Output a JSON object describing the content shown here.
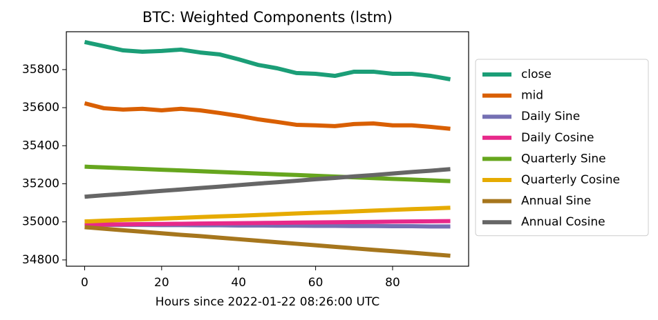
{
  "chart_data": {
    "type": "line",
    "title": "BTC: Weighted Components (lstm)",
    "x_label": "Hours since 2022-01-22 08:26:00 UTC",
    "x": [
      0,
      5,
      10,
      15,
      20,
      25,
      30,
      35,
      40,
      45,
      50,
      55,
      60,
      65,
      70,
      75,
      80,
      85,
      90,
      95
    ],
    "xlim": [
      -4.75,
      99.75
    ],
    "xticks": [
      0,
      20,
      40,
      60,
      80
    ],
    "ylim": [
      34767,
      35999
    ],
    "yticks": [
      34800,
      35000,
      35200,
      35400,
      35600,
      35800
    ],
    "legend": "outside right",
    "series": [
      {
        "name": "close",
        "color": "#1b9e77",
        "values": [
          35945,
          35923,
          35901,
          35894,
          35898,
          35905,
          35890,
          35880,
          35854,
          35825,
          35807,
          35782,
          35778,
          35767,
          35789,
          35789,
          35778,
          35778,
          35767,
          35749
        ]
      },
      {
        "name": "mid",
        "color": "#d95f02",
        "values": [
          35623,
          35597,
          35590,
          35594,
          35586,
          35594,
          35586,
          35572,
          35557,
          35539,
          35525,
          35510,
          35507,
          35503,
          35514,
          35517,
          35507,
          35507,
          35499,
          35489
        ]
      },
      {
        "name": "Daily Sine",
        "color": "#7570b3",
        "values": [
          34985,
          34985,
          34984,
          34984,
          34983,
          34983,
          34982,
          34982,
          34981,
          34981,
          34980,
          34980,
          34979,
          34979,
          34978,
          34978,
          34977,
          34977,
          34976,
          34976
        ]
      },
      {
        "name": "Daily Cosine",
        "color": "#e7298a",
        "values": [
          34985,
          34986,
          34987,
          34988,
          34989,
          34990,
          34991,
          34992,
          34993,
          34994,
          34995,
          34996,
          34997,
          34998,
          34999,
          35000,
          35001,
          35002,
          35003,
          35004
        ]
      },
      {
        "name": "Quarterly Sine",
        "color": "#66a61e",
        "values": [
          35290,
          35286,
          35282,
          35278,
          35274,
          35270,
          35266,
          35262,
          35258,
          35254,
          35250,
          35246,
          35242,
          35238,
          35234,
          35230,
          35226,
          35222,
          35218,
          35214
        ]
      },
      {
        "name": "Quarterly Cosine",
        "color": "#e6ab02",
        "values": [
          35002,
          35006,
          35010,
          35013,
          35017,
          35021,
          35025,
          35029,
          35032,
          35036,
          35040,
          35044,
          35048,
          35051,
          35055,
          35059,
          35063,
          35067,
          35070,
          35074
        ]
      },
      {
        "name": "Annual Sine",
        "color": "#a6761d",
        "values": [
          34972,
          34964,
          34956,
          34948,
          34940,
          34932,
          34925,
          34917,
          34909,
          34901,
          34893,
          34885,
          34877,
          34869,
          34861,
          34853,
          34846,
          34838,
          34830,
          34822
        ]
      },
      {
        "name": "Annual Cosine",
        "color": "#666666",
        "values": [
          35132,
          35140,
          35147,
          35155,
          35163,
          35170,
          35178,
          35185,
          35193,
          35201,
          35208,
          35216,
          35224,
          35231,
          35239,
          35246,
          35254,
          35262,
          35269,
          35277
        ]
      }
    ]
  }
}
